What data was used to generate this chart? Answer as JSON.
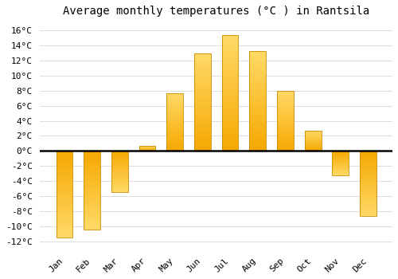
{
  "title": "Average monthly temperatures (°C ) in Rantsila",
  "months": [
    "Jan",
    "Feb",
    "Mar",
    "Apr",
    "May",
    "Jun",
    "Jul",
    "Aug",
    "Sep",
    "Oct",
    "Nov",
    "Dec"
  ],
  "values": [
    -11.5,
    -10.5,
    -5.5,
    0.7,
    7.7,
    13.0,
    15.4,
    13.3,
    8.0,
    2.7,
    -3.3,
    -8.7
  ],
  "bar_color_bottom": "#F5A800",
  "bar_color_top": "#FFD966",
  "bar_edge_color": "#CC8800",
  "background_color": "#FFFFFF",
  "plot_bg_color": "#FFFFFF",
  "grid_color": "#DDDDDD",
  "ylim": [
    -13,
    17
  ],
  "yticks": [
    -12,
    -10,
    -8,
    -6,
    -4,
    -2,
    0,
    2,
    4,
    6,
    8,
    10,
    12,
    14,
    16
  ],
  "title_fontsize": 10,
  "tick_fontsize": 8,
  "font_family": "monospace"
}
